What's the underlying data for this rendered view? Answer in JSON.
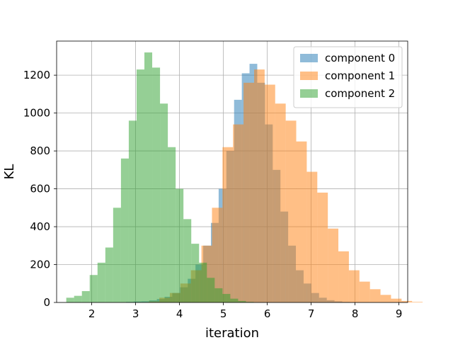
{
  "chart_data": {
    "type": "bar",
    "subtype": "histogram",
    "xlabel": "iteration",
    "ylabel": "KL",
    "xlim": [
      1.2,
      9.2
    ],
    "ylim": [
      0,
      1380
    ],
    "xticks": [
      2,
      3,
      4,
      5,
      6,
      7,
      8,
      9
    ],
    "yticks": [
      0,
      200,
      400,
      600,
      800,
      1000,
      1200
    ],
    "grid": true,
    "legend_position": "top-right",
    "bar_opacity": 0.5,
    "series": [
      {
        "name": "component 0",
        "color": "#1f77b4",
        "bin_start": 2.78,
        "bin_width": 0.176,
        "values": [
          3,
          5,
          6,
          11,
          18,
          30,
          50,
          80,
          125,
          200,
          300,
          420,
          600,
          800,
          1070,
          1210,
          1260,
          1160,
          940,
          700,
          480,
          300,
          170,
          100,
          50,
          25,
          12,
          6,
          3
        ]
      },
      {
        "name": "component 1",
        "color": "#ff7f0e",
        "bin_start": 3.3,
        "bin_width": 0.24,
        "values": [
          5,
          25,
          50,
          100,
          170,
          300,
          500,
          820,
          940,
          1160,
          1230,
          1150,
          1050,
          960,
          850,
          690,
          580,
          390,
          270,
          170,
          110,
          70,
          40,
          20,
          8,
          3
        ]
      },
      {
        "name": "component 2",
        "color": "#2ca02c",
        "bin_start": 1.42,
        "bin_width": 0.178,
        "values": [
          25,
          35,
          60,
          145,
          210,
          290,
          500,
          760,
          960,
          1230,
          1320,
          1240,
          1050,
          820,
          600,
          440,
          310,
          210,
          130,
          75,
          45,
          20,
          8,
          3
        ]
      }
    ]
  }
}
